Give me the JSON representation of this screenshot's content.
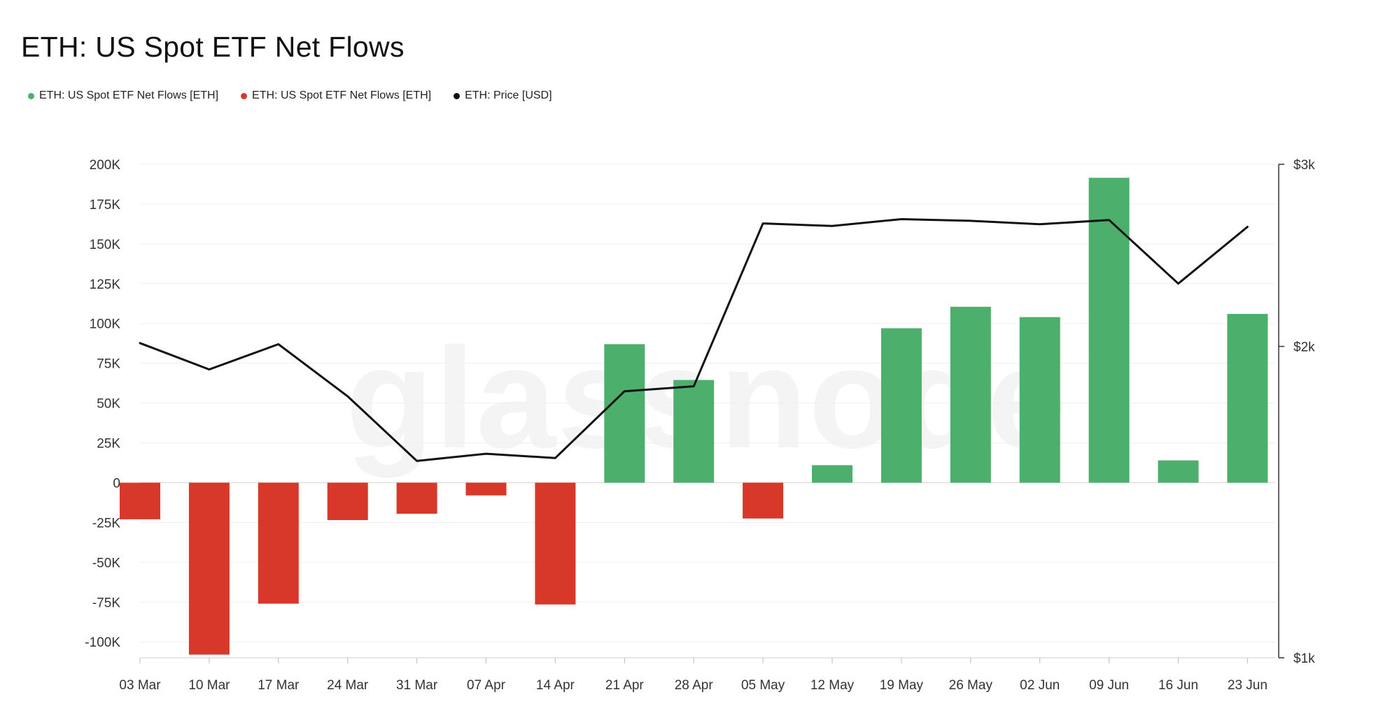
{
  "title": "ETH: US Spot ETF Net Flows",
  "watermark": "glassnode",
  "legend": [
    {
      "label": "ETH: US Spot ETF Net Flows [ETH]",
      "color": "#4caf6b"
    },
    {
      "label": "ETH: US Spot ETF Net Flows [ETH]",
      "color": "#d7382a"
    },
    {
      "label": "ETH: Price [USD]",
      "color": "#111111"
    }
  ],
  "chart_data": {
    "type": "bar",
    "categories": [
      "03 Mar",
      "10 Mar",
      "17 Mar",
      "24 Mar",
      "31 Mar",
      "07 Apr",
      "14 Apr",
      "21 Apr",
      "28 Apr",
      "05 May",
      "12 May",
      "19 May",
      "26 May",
      "02 Jun",
      "09 Jun",
      "16 Jun",
      "23 Jun"
    ],
    "series": [
      {
        "name": "ETH: US Spot ETF Net Flows [ETH]",
        "axis": "left",
        "values": [
          -23000,
          -108000,
          -76000,
          -23500,
          -19500,
          -8000,
          -76500,
          87000,
          64500,
          -22500,
          11000,
          97000,
          110500,
          104000,
          191500,
          14000,
          106000
        ],
        "positive_color": "#4caf6b",
        "negative_color": "#d7382a"
      },
      {
        "name": "ETH: Price [USD]",
        "axis": "right",
        "type": "line",
        "color": "#111111",
        "values": [
          2015,
          1900,
          2010,
          1790,
          1550,
          1575,
          1560,
          1810,
          1830,
          2630,
          2615,
          2655,
          2645,
          2625,
          2650,
          2300,
          2610
        ]
      }
    ],
    "y_left": {
      "min": -110000,
      "max": 200000,
      "ticks": [
        200000,
        175000,
        150000,
        125000,
        100000,
        75000,
        50000,
        25000,
        0,
        -25000,
        -50000,
        -75000,
        -100000
      ],
      "tick_labels": [
        "200K",
        "175K",
        "150K",
        "125K",
        "100K",
        "75K",
        "50K",
        "25K",
        "0",
        "-25K",
        "-50K",
        "-75K",
        "-100K"
      ]
    },
    "y_right": {
      "min": 1000,
      "max": 3000,
      "scale": "log",
      "ticks": [
        3000,
        2000,
        1000
      ],
      "tick_labels": [
        "$3k",
        "$2k",
        "$1k"
      ]
    },
    "grid": true,
    "legend_position": "top-left"
  }
}
